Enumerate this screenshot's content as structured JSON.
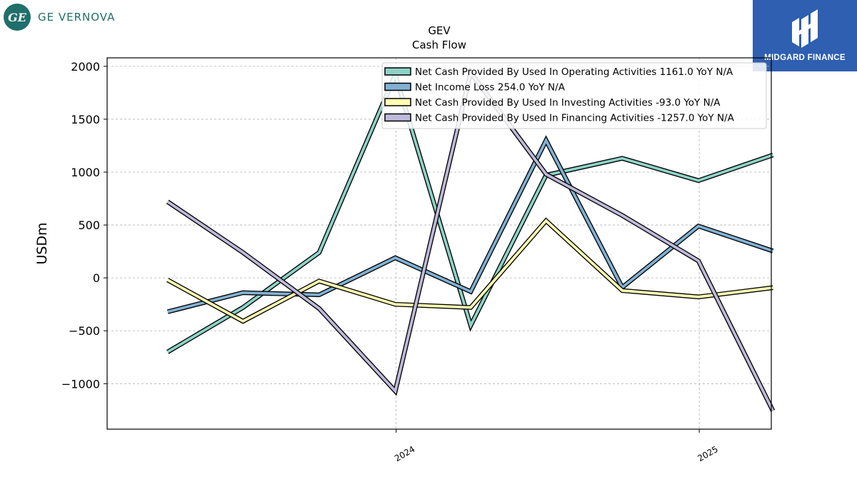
{
  "branding": {
    "left_logo_mark": "GE",
    "left_name": "GE VERNOVA",
    "right_name": "MIDGARD FINANCE"
  },
  "chart_data": {
    "type": "line",
    "title": "GEV",
    "subtitle": "Cash Flow",
    "ylabel": "USDm",
    "xlabel": "",
    "ylim": [
      -1430,
      2080
    ],
    "yticks": [
      -1000,
      -500,
      0,
      500,
      1000,
      1500,
      2000
    ],
    "ytick_labels": [
      "−1000",
      "−500",
      "0",
      "500",
      "1000",
      "1500",
      "2000"
    ],
    "x": [
      "2023-03-31",
      "2023-06-30",
      "2023-09-30",
      "2023-12-31",
      "2024-03-31",
      "2024-06-30",
      "2024-09-30",
      "2024-12-31",
      "2025-03-31"
    ],
    "xlim": [
      "2023-01-17",
      "2025-03-29"
    ],
    "xticks": [
      {
        "date": "2024-01-01",
        "label": "2024"
      },
      {
        "date": "2025-01-01",
        "label": "2025"
      }
    ],
    "grid": true,
    "legend_position": "top-right",
    "series": [
      {
        "name": "Net Cash Provided By Used In Operating Activities  1161.0 YoY N/A",
        "color": "#8dd3c7",
        "values": [
          -700,
          -280,
          240,
          1920,
          -450,
          970,
          1130,
          920,
          1161
        ]
      },
      {
        "name": "Net Income Loss  254.0 YoY N/A",
        "color": "#80b1d3",
        "values": [
          -320,
          -140,
          -160,
          190,
          -130,
          1300,
          -90,
          490,
          254
        ]
      },
      {
        "name": "Net Cash Provided By Used In Investing Activities  -93.0 YoY N/A",
        "color": "#ffffb3",
        "values": [
          -20,
          -410,
          -30,
          -250,
          -280,
          540,
          -120,
          -180,
          -93
        ]
      },
      {
        "name": "Net Cash Provided By Used In Financing Activities  -1257.0 YoY N/A",
        "color": "#bebada",
        "values": [
          720,
          240,
          -290,
          -1070,
          1940,
          980,
          590,
          160,
          -1257
        ]
      }
    ]
  }
}
